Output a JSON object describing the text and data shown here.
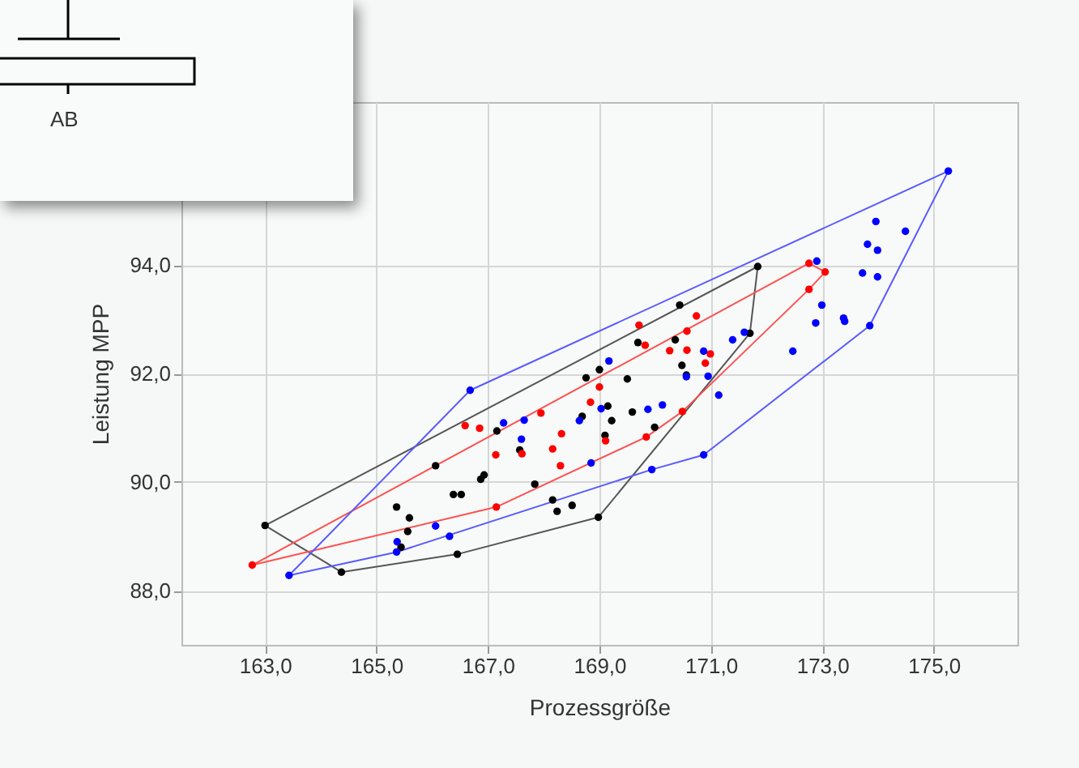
{
  "chart_data": {
    "type": "scatter",
    "xlabel": "Prozessgröße",
    "ylabel": "Leistung MPP",
    "xlim": [
      161.5,
      176.5
    ],
    "ylim": [
      87.0,
      97.0
    ],
    "xticks": [
      {
        "value": 163,
        "label": "163,0"
      },
      {
        "value": 165,
        "label": "165,0"
      },
      {
        "value": 167,
        "label": "167,0"
      },
      {
        "value": 169,
        "label": "169,0"
      },
      {
        "value": 171,
        "label": "171,0"
      },
      {
        "value": 173,
        "label": "173,0"
      },
      {
        "value": 175,
        "label": "175,0"
      }
    ],
    "yticks": [
      {
        "value": 88,
        "label": "88,0"
      },
      {
        "value": 90,
        "label": "90,0"
      },
      {
        "value": 92,
        "label": "92,0"
      },
      {
        "value": 94,
        "label": "94,0"
      }
    ],
    "grid": true,
    "marker": "circle",
    "annotations": [
      "AB"
    ],
    "series": [
      {
        "type": "line",
        "color": "#555555",
        "marker": "none",
        "x": [
          163.0,
          164.37,
          166.45,
          168.98,
          171.7,
          171.84
        ],
        "values": [
          89.2,
          88.34,
          88.67,
          89.35,
          92.74,
          93.97
        ]
      },
      {
        "type": "line",
        "color": "#555555",
        "marker": "none",
        "x": [
          163.0,
          171.84
        ],
        "values": [
          89.2,
          93.97
        ]
      },
      {
        "type": "line",
        "color": "#ff5050",
        "marker": "none",
        "x": [
          162.77,
          167.15,
          169.84,
          170.49,
          172.76,
          173.05
        ],
        "values": [
          88.47,
          89.54,
          90.83,
          91.3,
          93.55,
          93.87
        ]
      },
      {
        "type": "line",
        "color": "#ff5050",
        "marker": "none",
        "x": [
          162.77,
          172.76,
          173.05
        ],
        "values": [
          88.47,
          94.03,
          93.87
        ]
      },
      {
        "type": "line",
        "color": "#5a5aff",
        "marker": "none",
        "x": [
          163.43,
          165.36,
          169.94,
          170.87,
          173.85,
          175.26
        ],
        "values": [
          88.28,
          88.71,
          90.23,
          90.5,
          92.88,
          95.73
        ]
      },
      {
        "type": "line",
        "color": "#5a5aff",
        "marker": "none",
        "x": [
          163.43,
          166.68,
          175.26
        ],
        "values": [
          88.28,
          91.69,
          95.73
        ]
      },
      {
        "type": "scatter",
        "color": "#000000",
        "x": [
          163.0,
          164.37,
          166.45,
          168.98,
          165.36,
          165.59,
          165.56,
          165.44,
          166.06,
          166.38,
          166.52,
          166.87,
          166.93,
          167.16,
          167.57,
          167.84,
          168.16,
          168.24,
          168.51,
          168.76,
          169.0,
          168.69,
          169.15,
          169.22,
          169.1,
          169.5,
          169.59,
          169.99,
          169.69,
          170.36,
          170.48,
          170.56,
          170.44,
          171.84,
          171.7
        ],
        "values": [
          89.2,
          88.34,
          88.67,
          89.35,
          89.54,
          89.34,
          89.09,
          88.8,
          90.3,
          89.77,
          89.77,
          90.05,
          90.13,
          90.94,
          90.59,
          89.96,
          89.67,
          89.46,
          89.57,
          91.92,
          92.07,
          91.21,
          91.4,
          91.13,
          90.86,
          91.9,
          91.29,
          91.01,
          92.57,
          92.62,
          92.15,
          91.97,
          93.26,
          93.97,
          92.74
        ]
      },
      {
        "type": "scatter",
        "color": "#ff0000",
        "x": [
          162.77,
          167.15,
          166.59,
          166.85,
          167.14,
          167.61,
          167.95,
          168.32,
          168.16,
          168.3,
          168.84,
          169.0,
          169.11,
          169.71,
          169.82,
          170.74,
          170.57,
          170.26,
          170.57,
          170.99,
          170.9,
          170.49,
          169.84,
          172.76,
          173.05,
          172.76
        ],
        "values": [
          88.47,
          89.54,
          91.04,
          90.99,
          90.5,
          90.52,
          91.27,
          90.89,
          90.61,
          90.3,
          91.47,
          91.75,
          90.76,
          92.89,
          92.52,
          93.06,
          92.78,
          92.42,
          92.43,
          92.36,
          92.19,
          91.3,
          90.83,
          94.03,
          93.87,
          93.55
        ]
      },
      {
        "type": "scatter",
        "color": "#0000ff",
        "x": [
          163.43,
          166.68,
          165.37,
          165.36,
          166.06,
          166.31,
          167.28,
          167.65,
          167.6,
          168.64,
          169.03,
          169.17,
          168.85,
          169.94,
          170.87,
          173.85,
          175.26,
          173.96,
          174.49,
          173.81,
          173.99,
          173.72,
          173.99,
          172.9,
          172.99,
          172.88,
          173.38,
          173.4,
          172.47,
          171.39,
          171.6,
          170.87,
          170.56,
          170.95,
          171.14,
          169.87,
          170.13
        ],
        "values": [
          88.28,
          91.69,
          88.9,
          88.71,
          89.19,
          89.0,
          91.09,
          91.14,
          90.79,
          91.13,
          91.35,
          92.23,
          90.35,
          90.23,
          90.5,
          92.88,
          95.73,
          94.8,
          94.62,
          94.38,
          94.27,
          93.85,
          93.78,
          94.07,
          93.26,
          92.93,
          93.02,
          92.96,
          92.41,
          92.62,
          92.76,
          92.41,
          91.94,
          91.95,
          91.6,
          91.34,
          91.42
        ]
      }
    ]
  }
}
